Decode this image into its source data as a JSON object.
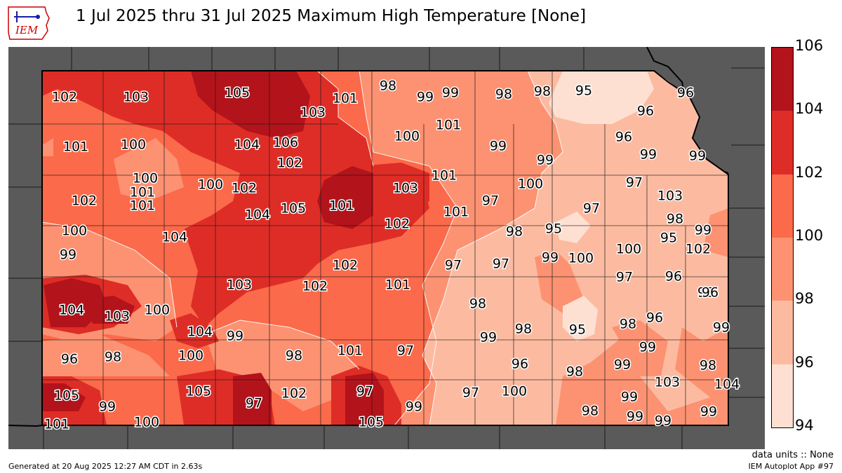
{
  "title": "1 Jul 2025 thru 31 Jul 2025 Maximum High Temperature [None]",
  "logo_text": "IEM",
  "units_text": "data units :: None",
  "app_text": "IEM Autoplot App #97",
  "generated_text": "Generated at 20 Aug 2025 12:27 AM CDT in 2.63s",
  "colorbar": {
    "ticks": [
      "106",
      "104",
      "102",
      "100",
      "98",
      "96",
      "94"
    ],
    "bins": [
      {
        "min": 94,
        "max": 96,
        "color": "#fee0d2"
      },
      {
        "min": 96,
        "max": 98,
        "color": "#fcbba1"
      },
      {
        "min": 98,
        "max": 100,
        "color": "#fc9272"
      },
      {
        "min": 100,
        "max": 102,
        "color": "#fb6a4a"
      },
      {
        "min": 102,
        "max": 104,
        "color": "#de2d26"
      },
      {
        "min": 104,
        "max": 106,
        "color": "#b3131b"
      }
    ]
  },
  "station_values": [
    "102",
    "103",
    "105",
    "103",
    "101",
    "98",
    "99",
    "99",
    "98",
    "98",
    "95",
    "96",
    "96",
    "101",
    "100",
    "104",
    "106",
    "102",
    "100",
    "101",
    "99",
    "99",
    "96",
    "99",
    "99",
    "100",
    "100",
    "102",
    "103",
    "101",
    "100",
    "97",
    "102",
    "101",
    "104",
    "105",
    "101",
    "101",
    "97",
    "103",
    "100",
    "98",
    "95",
    "97",
    "95",
    "98",
    "99",
    "102",
    "99",
    "104",
    "102",
    "97",
    "97",
    "99",
    "100",
    "100",
    "98",
    "103",
    "102",
    "102",
    "101",
    "97",
    "96",
    "96",
    "104",
    "103",
    "100",
    "101",
    "98",
    "98",
    "95",
    "98",
    "96",
    "99",
    "99",
    "104",
    "99",
    "101",
    "97",
    "99",
    "96",
    "99",
    "98",
    "100",
    "98",
    "98",
    "96",
    "98",
    "99",
    "97",
    "100",
    "104",
    "103",
    "105",
    "99",
    "105",
    "97",
    "97",
    "99",
    "99",
    "99",
    "102",
    "100",
    "101",
    "105",
    "98",
    "99"
  ]
}
